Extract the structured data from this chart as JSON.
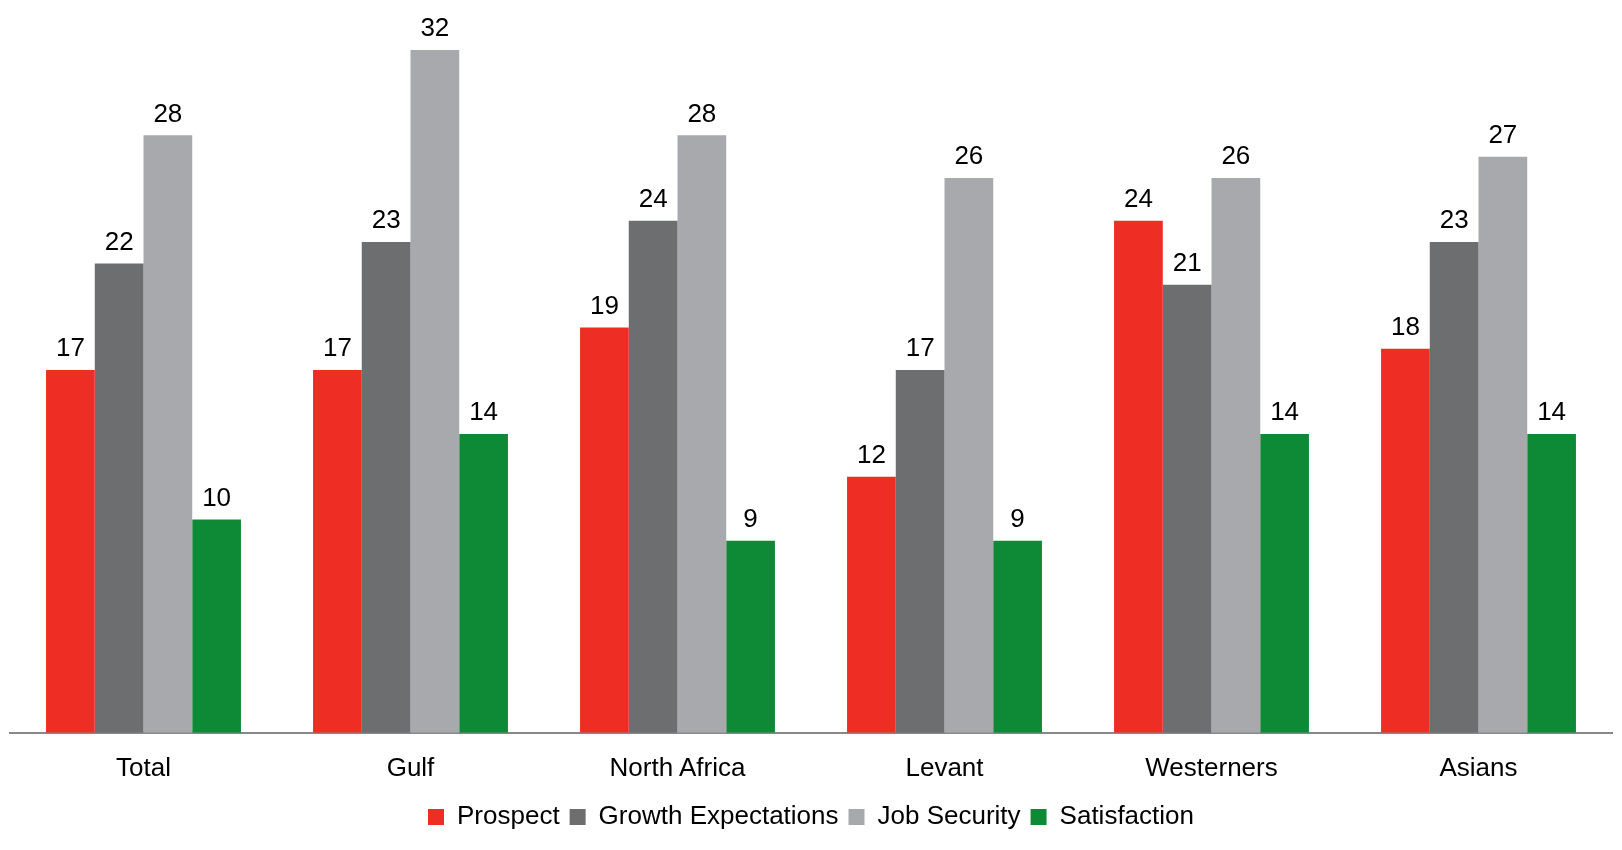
{
  "chart_data": {
    "type": "bar",
    "categories": [
      "Total",
      "Gulf",
      "North Africa",
      "Levant",
      "Westerners",
      "Asians"
    ],
    "series": [
      {
        "name": "Prospect",
        "color": "#ee2e24",
        "values": [
          17,
          17,
          19,
          12,
          24,
          18
        ]
      },
      {
        "name": "Growth Expectations",
        "color": "#6d6e70",
        "values": [
          22,
          23,
          24,
          17,
          21,
          23
        ]
      },
      {
        "name": "Job Security",
        "color": "#a7a9ac",
        "values": [
          28,
          32,
          28,
          26,
          26,
          27
        ]
      },
      {
        "name": "Satisfaction",
        "color": "#0e8a36",
        "values": [
          10,
          14,
          9,
          9,
          14,
          14
        ]
      }
    ],
    "data_labels": true,
    "grid": false,
    "legend": "bottom"
  }
}
